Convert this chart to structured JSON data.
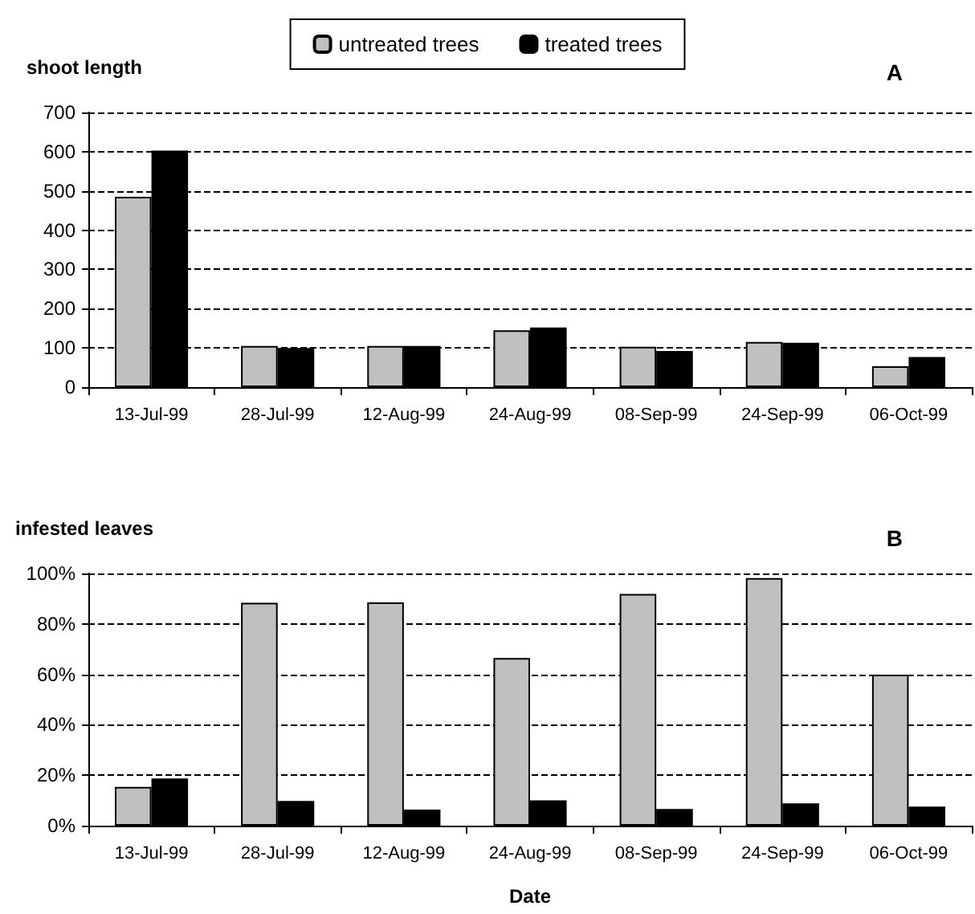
{
  "chart_data": [
    {
      "type": "bar",
      "ylabel": "shoot length",
      "annotations": [
        "A"
      ],
      "categories": [
        "13-Jul-99",
        "28-Jul-99",
        "12-Aug-99",
        "24-Aug-99",
        "08-Sep-99",
        "24-Sep-99",
        "06-Oct-99"
      ],
      "series": [
        {
          "name": "untreated trees",
          "color": "#c0c0c0",
          "values": [
            485,
            105,
            105,
            145,
            103,
            115,
            53
          ]
        },
        {
          "name": "treated trees",
          "color": "#000000",
          "values": [
            603,
            100,
            105,
            152,
            92,
            113,
            77
          ]
        }
      ],
      "ylim": [
        0,
        700
      ],
      "yticks": [
        0,
        100,
        200,
        300,
        400,
        500,
        600,
        700
      ],
      "grid": "y",
      "legend": "top"
    },
    {
      "type": "bar",
      "ylabel": "infested leaves",
      "xlabel": "Date",
      "annotations": [
        "B"
      ],
      "categories": [
        "13-Jul-99",
        "28-Jul-99",
        "12-Aug-99",
        "24-Aug-99",
        "08-Sep-99",
        "24-Sep-99",
        "06-Oct-99"
      ],
      "series": [
        {
          "color": "#c0c0c0",
          "values": [
            15.4,
            88.4,
            88.5,
            66.5,
            91.9,
            98.2,
            59.9
          ]
        },
        {
          "color": "#000000",
          "values": [
            18.7,
            9.8,
            6.4,
            10,
            6.6,
            8.8,
            7.6
          ]
        }
      ],
      "ylim": [
        0,
        100
      ],
      "yticks": [
        {
          "value": 0,
          "label": "0%"
        },
        {
          "value": 20,
          "label": "20%"
        },
        {
          "value": 40,
          "label": "40%"
        },
        {
          "value": 60,
          "label": "60%"
        },
        {
          "value": 80,
          "label": "80%"
        },
        {
          "value": 100,
          "label": "100%"
        }
      ],
      "grid": "y"
    }
  ]
}
